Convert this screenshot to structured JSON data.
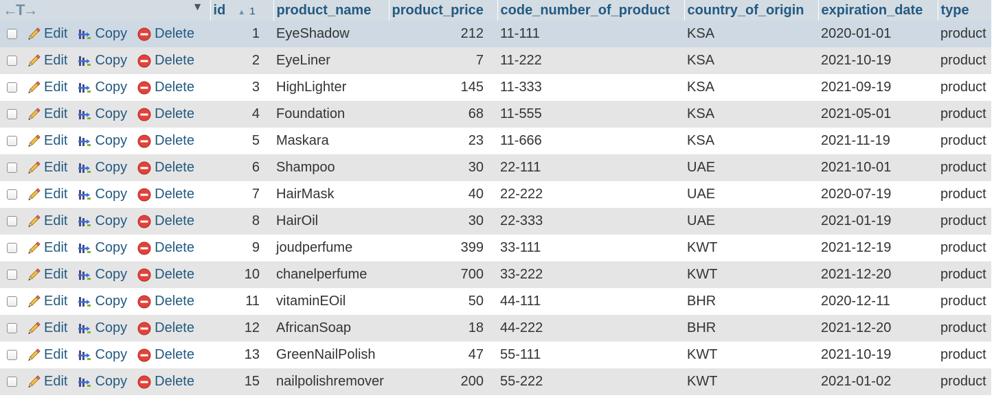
{
  "header": {
    "arrows_glyph": "←T→",
    "col_id": "id",
    "col_id_sort_order": "1",
    "col_product_name": "product_name",
    "col_product_price": "product_price",
    "col_code": "code_number_of_product",
    "col_country": "country_of_origin",
    "col_expiration": "expiration_date",
    "col_type": "type"
  },
  "actions": {
    "edit_label": "Edit",
    "copy_label": "Copy",
    "delete_label": "Delete"
  },
  "colors": {
    "header_bg": "#d3dce3",
    "link": "#235a81",
    "row_even": "#e5e5e5",
    "row_selected": "#ced9e3"
  },
  "rows": [
    {
      "id": "1",
      "product_name": "EyeShadow",
      "product_price": "212",
      "code": "11-111",
      "country": "KSA",
      "expiration": "2020-01-01",
      "type": "product"
    },
    {
      "id": "2",
      "product_name": "EyeLiner",
      "product_price": "7",
      "code": "11-222",
      "country": "KSA",
      "expiration": "2021-10-19",
      "type": "product"
    },
    {
      "id": "3",
      "product_name": "HighLighter",
      "product_price": "145",
      "code": "11-333",
      "country": "KSA",
      "expiration": "2021-09-19",
      "type": "product"
    },
    {
      "id": "4",
      "product_name": "Foundation",
      "product_price": "68",
      "code": "11-555",
      "country": "KSA",
      "expiration": "2021-05-01",
      "type": "product"
    },
    {
      "id": "5",
      "product_name": "Maskara",
      "product_price": "23",
      "code": "11-666",
      "country": "KSA",
      "expiration": "2021-11-19",
      "type": "product"
    },
    {
      "id": "6",
      "product_name": "Shampoo",
      "product_price": "30",
      "code": "22-111",
      "country": "UAE",
      "expiration": "2021-10-01",
      "type": "product"
    },
    {
      "id": "7",
      "product_name": "HairMask",
      "product_price": "40",
      "code": "22-222",
      "country": "UAE",
      "expiration": "2020-07-19",
      "type": "product"
    },
    {
      "id": "8",
      "product_name": "HairOil",
      "product_price": "30",
      "code": "22-333",
      "country": "UAE",
      "expiration": "2021-01-19",
      "type": "product"
    },
    {
      "id": "9",
      "product_name": "joudperfume",
      "product_price": "399",
      "code": "33-111",
      "country": "KWT",
      "expiration": "2021-12-19",
      "type": "product"
    },
    {
      "id": "10",
      "product_name": "chanelperfume",
      "product_price": "700",
      "code": "33-222",
      "country": "KWT",
      "expiration": "2021-12-20",
      "type": "product"
    },
    {
      "id": "11",
      "product_name": "vitaminEOil",
      "product_price": "50",
      "code": "44-111",
      "country": "BHR",
      "expiration": "2020-12-11",
      "type": "product"
    },
    {
      "id": "12",
      "product_name": "AfricanSoap",
      "product_price": "18",
      "code": "44-222",
      "country": "BHR",
      "expiration": "2021-12-20",
      "type": "product"
    },
    {
      "id": "13",
      "product_name": "GreenNailPolish",
      "product_price": "47",
      "code": "55-111",
      "country": "KWT",
      "expiration": "2021-10-19",
      "type": "product"
    },
    {
      "id": "15",
      "product_name": "nailpolishremover",
      "product_price": "200",
      "code": "55-222",
      "country": "KWT",
      "expiration": "2021-01-02",
      "type": "product"
    }
  ]
}
